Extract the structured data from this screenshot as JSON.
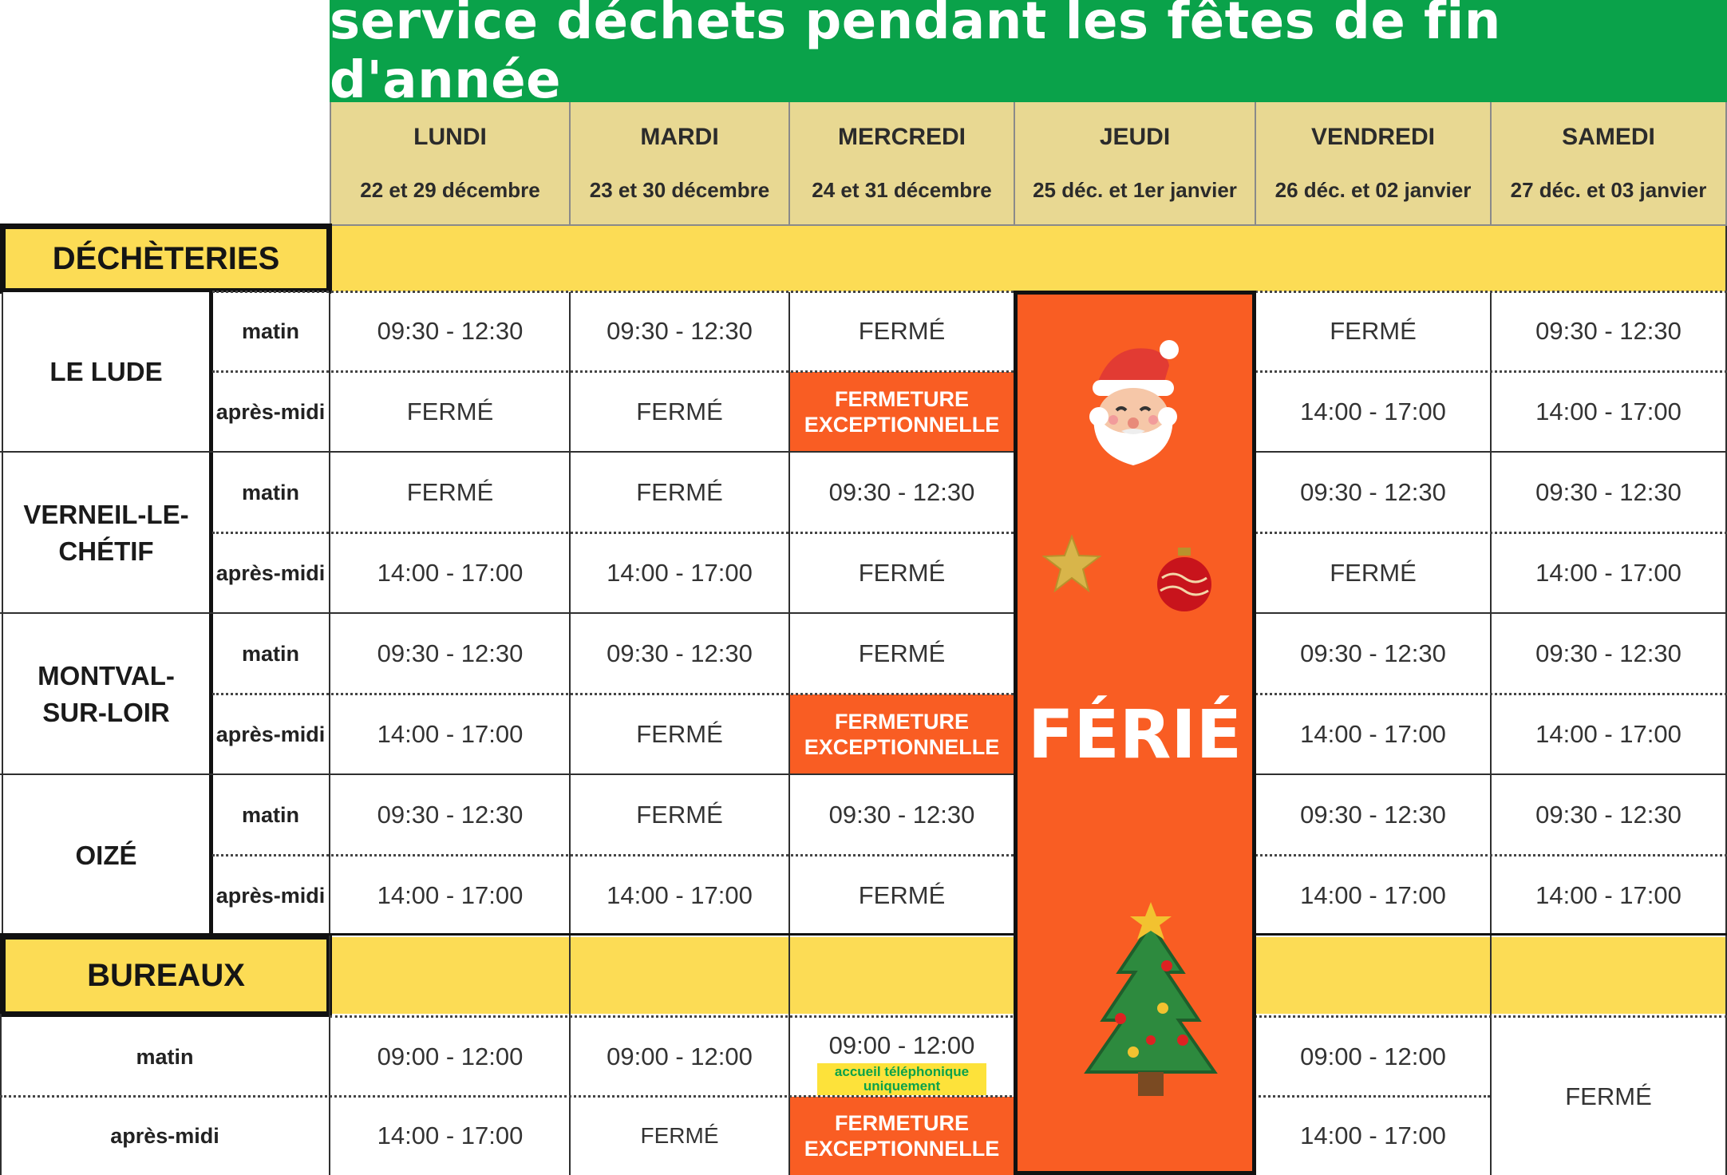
{
  "title": "service déchets pendant les fêtes de fin d'année",
  "days": [
    {
      "name": "LUNDI",
      "dates": "22 et 29 décembre"
    },
    {
      "name": "MARDI",
      "dates": "23 et 30 décembre"
    },
    {
      "name": "MERCREDI",
      "dates": "24 et 31 décembre"
    },
    {
      "name": "JEUDI",
      "dates": "25 déc. et 1er janvier"
    },
    {
      "name": "VENDREDI",
      "dates": "26 déc. et 02 janvier"
    },
    {
      "name": "SAMEDI",
      "dates": "27 déc. et 03 janvier"
    }
  ],
  "sections": {
    "decheteries": "DÉCHÈTERIES",
    "bureaux": "BUREAUX"
  },
  "slots": {
    "matin": "matin",
    "apres_midi": "après-midi"
  },
  "sites": [
    {
      "name": "LE LUDE",
      "matin": [
        "09:30 - 12:30",
        "09:30 - 12:30",
        "FERMÉ",
        "FERMÉ",
        "09:30 - 12:30"
      ],
      "apres_midi": [
        "FERMÉ",
        "FERMÉ",
        "FERMETURE EXCEPTIONNELLE",
        "14:00 - 17:00",
        "14:00 - 17:00"
      ]
    },
    {
      "name": "VERNEIL-LE-CHÉTIF",
      "matin": [
        "FERMÉ",
        "FERMÉ",
        "09:30 - 12:30",
        "09:30 - 12:30",
        "09:30 - 12:30"
      ],
      "apres_midi": [
        "14:00 - 17:00",
        "14:00 - 17:00",
        "FERMÉ",
        "FERMÉ",
        "14:00 - 17:00"
      ]
    },
    {
      "name": "MONTVAL-SUR-LOIR",
      "matin": [
        "09:30 - 12:30",
        "09:30 - 12:30",
        "FERMÉ",
        "09:30 - 12:30",
        "09:30 - 12:30"
      ],
      "apres_midi": [
        "14:00 - 17:00",
        "FERMÉ",
        "FERMETURE EXCEPTIONNELLE",
        "14:00 - 17:00",
        "14:00 - 17:00"
      ]
    },
    {
      "name": "OIZÉ",
      "matin": [
        "09:30 - 12:30",
        "FERMÉ",
        "09:30 - 12:30",
        "09:30 - 12:30",
        "09:30 - 12:30"
      ],
      "apres_midi": [
        "14:00 - 17:00",
        "14:00 - 17:00",
        "FERMÉ",
        "14:00 - 17:00",
        "14:00 - 17:00"
      ]
    }
  ],
  "bureaux": {
    "matin": [
      "09:00 - 12:00",
      "09:00 - 12:00",
      "09:00 - 12:00",
      "09:00 - 12:00"
    ],
    "apres_midi": [
      "14:00 - 17:00",
      "FERMÉ",
      "FERMETURE EXCEPTIONNELLE",
      "14:00 - 17:00"
    ],
    "samedi": "FERMÉ",
    "note_mercredi": "accueil téléphonique uniquement"
  },
  "jeudi_label": "FÉRIÉ",
  "exceptional_closure": [
    "FERMETURE",
    "EXCEPTIONNELLE"
  ],
  "colors": {
    "title_green": "#0aa24a",
    "header_beige": "#e8d892",
    "section_yellow": "#fcdc55",
    "holiday_orange": "#f95d23"
  },
  "icons": [
    "santa-icon",
    "gold-star-icon",
    "red-ornament-icon",
    "christmas-tree-icon"
  ]
}
